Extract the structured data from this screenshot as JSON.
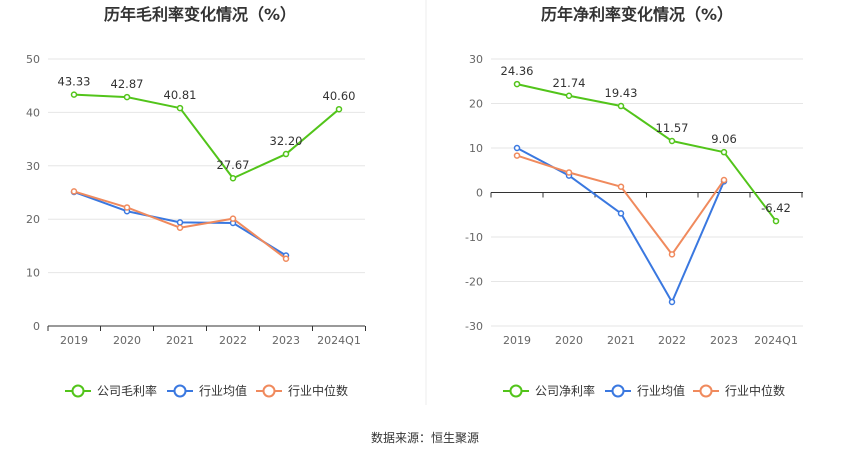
{
  "source_text": "数据来源：恒生聚源",
  "colors": {
    "company": "#52c41a",
    "industry_avg": "#3a78e0",
    "industry_median": "#f08a5d",
    "grid": "#e6e6e6",
    "axis": "#333333"
  },
  "chart_data": [
    {
      "type": "line",
      "title": "历年毛利率变化情况（%）",
      "categories": [
        "2019",
        "2020",
        "2021",
        "2022",
        "2023",
        "2024Q1"
      ],
      "ylim": [
        0,
        50
      ],
      "yticks": [
        0,
        10,
        20,
        30,
        40,
        50
      ],
      "series": [
        {
          "name": "公司毛利率",
          "key": "company",
          "values": [
            43.33,
            42.87,
            40.81,
            27.67,
            32.2,
            40.6
          ],
          "labels": [
            "43.33",
            "42.87",
            "40.81",
            "27.67",
            "32.20",
            "40.60"
          ]
        },
        {
          "name": "行业均值",
          "key": "industry_avg",
          "values": [
            25.1,
            21.5,
            19.4,
            19.3,
            13.2,
            null
          ]
        },
        {
          "name": "行业中位数",
          "key": "industry_median",
          "values": [
            25.2,
            22.2,
            18.4,
            20.1,
            12.6,
            null
          ]
        }
      ]
    },
    {
      "type": "line",
      "title": "历年净利率变化情况（%）",
      "categories": [
        "2019",
        "2020",
        "2021",
        "2022",
        "2023",
        "2024Q1"
      ],
      "ylim": [
        -30,
        30
      ],
      "yticks": [
        -30,
        -20,
        -10,
        0,
        10,
        20,
        30
      ],
      "series": [
        {
          "name": "公司净利率",
          "key": "company",
          "values": [
            24.36,
            21.74,
            19.43,
            11.57,
            9.06,
            -6.42
          ],
          "labels": [
            "24.36",
            "21.74",
            "19.43",
            "11.57",
            "9.06",
            "-6.42"
          ]
        },
        {
          "name": "行业均值",
          "key": "industry_avg",
          "values": [
            10.0,
            3.8,
            -4.7,
            -24.6,
            2.5,
            null
          ]
        },
        {
          "name": "行业中位数",
          "key": "industry_median",
          "values": [
            8.3,
            4.5,
            1.3,
            -13.9,
            2.8,
            null
          ]
        }
      ]
    }
  ]
}
